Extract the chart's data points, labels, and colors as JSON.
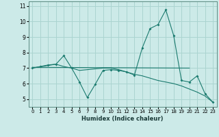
{
  "xlabel": "Humidex (Indice chaleur)",
  "xlim": [
    -0.5,
    23.5
  ],
  "ylim": [
    4.5,
    11.3
  ],
  "yticks": [
    5,
    6,
    7,
    8,
    9,
    10,
    11
  ],
  "xticks": [
    0,
    1,
    2,
    3,
    4,
    5,
    6,
    7,
    8,
    9,
    10,
    11,
    12,
    13,
    14,
    15,
    16,
    17,
    18,
    19,
    20,
    21,
    22,
    23
  ],
  "bg_color": "#cceae8",
  "grid_color": "#aad4d0",
  "line_color": "#1a7a6e",
  "line1_x": [
    0,
    1,
    2,
    3,
    4,
    5,
    6,
    7,
    8,
    9,
    10,
    11,
    12,
    13,
    14,
    15,
    16,
    17,
    18,
    19,
    20,
    21,
    22,
    23
  ],
  "line1_y": [
    7.0,
    7.1,
    7.2,
    7.25,
    7.8,
    7.0,
    6.1,
    5.1,
    5.95,
    6.85,
    6.9,
    6.85,
    6.75,
    6.55,
    8.3,
    9.55,
    9.8,
    10.75,
    9.1,
    6.2,
    6.1,
    6.5,
    5.35,
    4.8
  ],
  "line2_x": [
    0,
    20
  ],
  "line2_y": [
    7.05,
    7.0
  ],
  "line3_x": [
    0,
    3,
    4,
    5,
    6,
    7,
    8,
    9,
    10,
    11,
    12,
    13,
    14,
    15,
    16,
    17,
    18,
    19,
    20,
    21,
    22,
    23
  ],
  "line3_y": [
    7.0,
    7.25,
    7.1,
    7.0,
    6.85,
    6.9,
    6.95,
    7.0,
    7.0,
    6.9,
    6.75,
    6.6,
    6.5,
    6.35,
    6.2,
    6.1,
    6.0,
    5.85,
    5.65,
    5.45,
    5.2,
    4.8
  ]
}
